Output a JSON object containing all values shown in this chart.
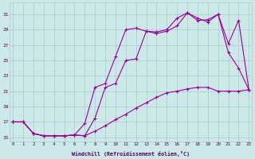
{
  "xlabel": "Windchill (Refroidissement éolien,°C)",
  "background_color": "#cce8e8",
  "grid_color": "#aacccc",
  "line_color": "#990099",
  "x_ticks": [
    0,
    1,
    2,
    3,
    4,
    5,
    6,
    7,
    8,
    9,
    10,
    11,
    12,
    13,
    14,
    15,
    16,
    17,
    18,
    19,
    20,
    21,
    22,
    23
  ],
  "y_ticks": [
    15,
    17,
    19,
    21,
    23,
    25,
    27,
    29,
    31
  ],
  "xlim": [
    -0.3,
    23.3
  ],
  "ylim": [
    14.5,
    32.5
  ],
  "series1_x": [
    0,
    1,
    2,
    3,
    4,
    5,
    6,
    7,
    8,
    9,
    10,
    11,
    12,
    13,
    14,
    15,
    16,
    17,
    18,
    19,
    20,
    21,
    22,
    23
  ],
  "series1_y": [
    17.0,
    17.0,
    15.5,
    15.2,
    15.2,
    15.2,
    15.3,
    15.2,
    15.8,
    16.5,
    17.3,
    18.0,
    18.8,
    19.5,
    20.2,
    20.8,
    21.0,
    21.3,
    21.5,
    21.5,
    21.0,
    21.0,
    21.0,
    21.2
  ],
  "series2_x": [
    0,
    1,
    2,
    3,
    4,
    5,
    6,
    7,
    8,
    9,
    10,
    11,
    12,
    13,
    14,
    15,
    16,
    17,
    18,
    19,
    20,
    21,
    22,
    23
  ],
  "series2_y": [
    17.0,
    17.0,
    15.5,
    15.2,
    15.2,
    15.2,
    15.3,
    15.2,
    17.5,
    21.5,
    22.0,
    25.0,
    25.2,
    28.8,
    28.5,
    28.8,
    29.5,
    31.2,
    30.2,
    30.3,
    31.0,
    26.0,
    24.0,
    21.2
  ],
  "series3_x": [
    0,
    1,
    2,
    3,
    4,
    5,
    6,
    7,
    8,
    9,
    10,
    11,
    12,
    13,
    14,
    15,
    16,
    17,
    18,
    19,
    20,
    21,
    22,
    23
  ],
  "series3_y": [
    17.0,
    17.0,
    15.5,
    15.2,
    15.2,
    15.2,
    15.3,
    16.8,
    21.5,
    22.0,
    25.5,
    29.0,
    29.2,
    28.8,
    28.7,
    29.0,
    30.5,
    31.2,
    30.5,
    30.0,
    31.0,
    27.2,
    30.2,
    21.2
  ]
}
